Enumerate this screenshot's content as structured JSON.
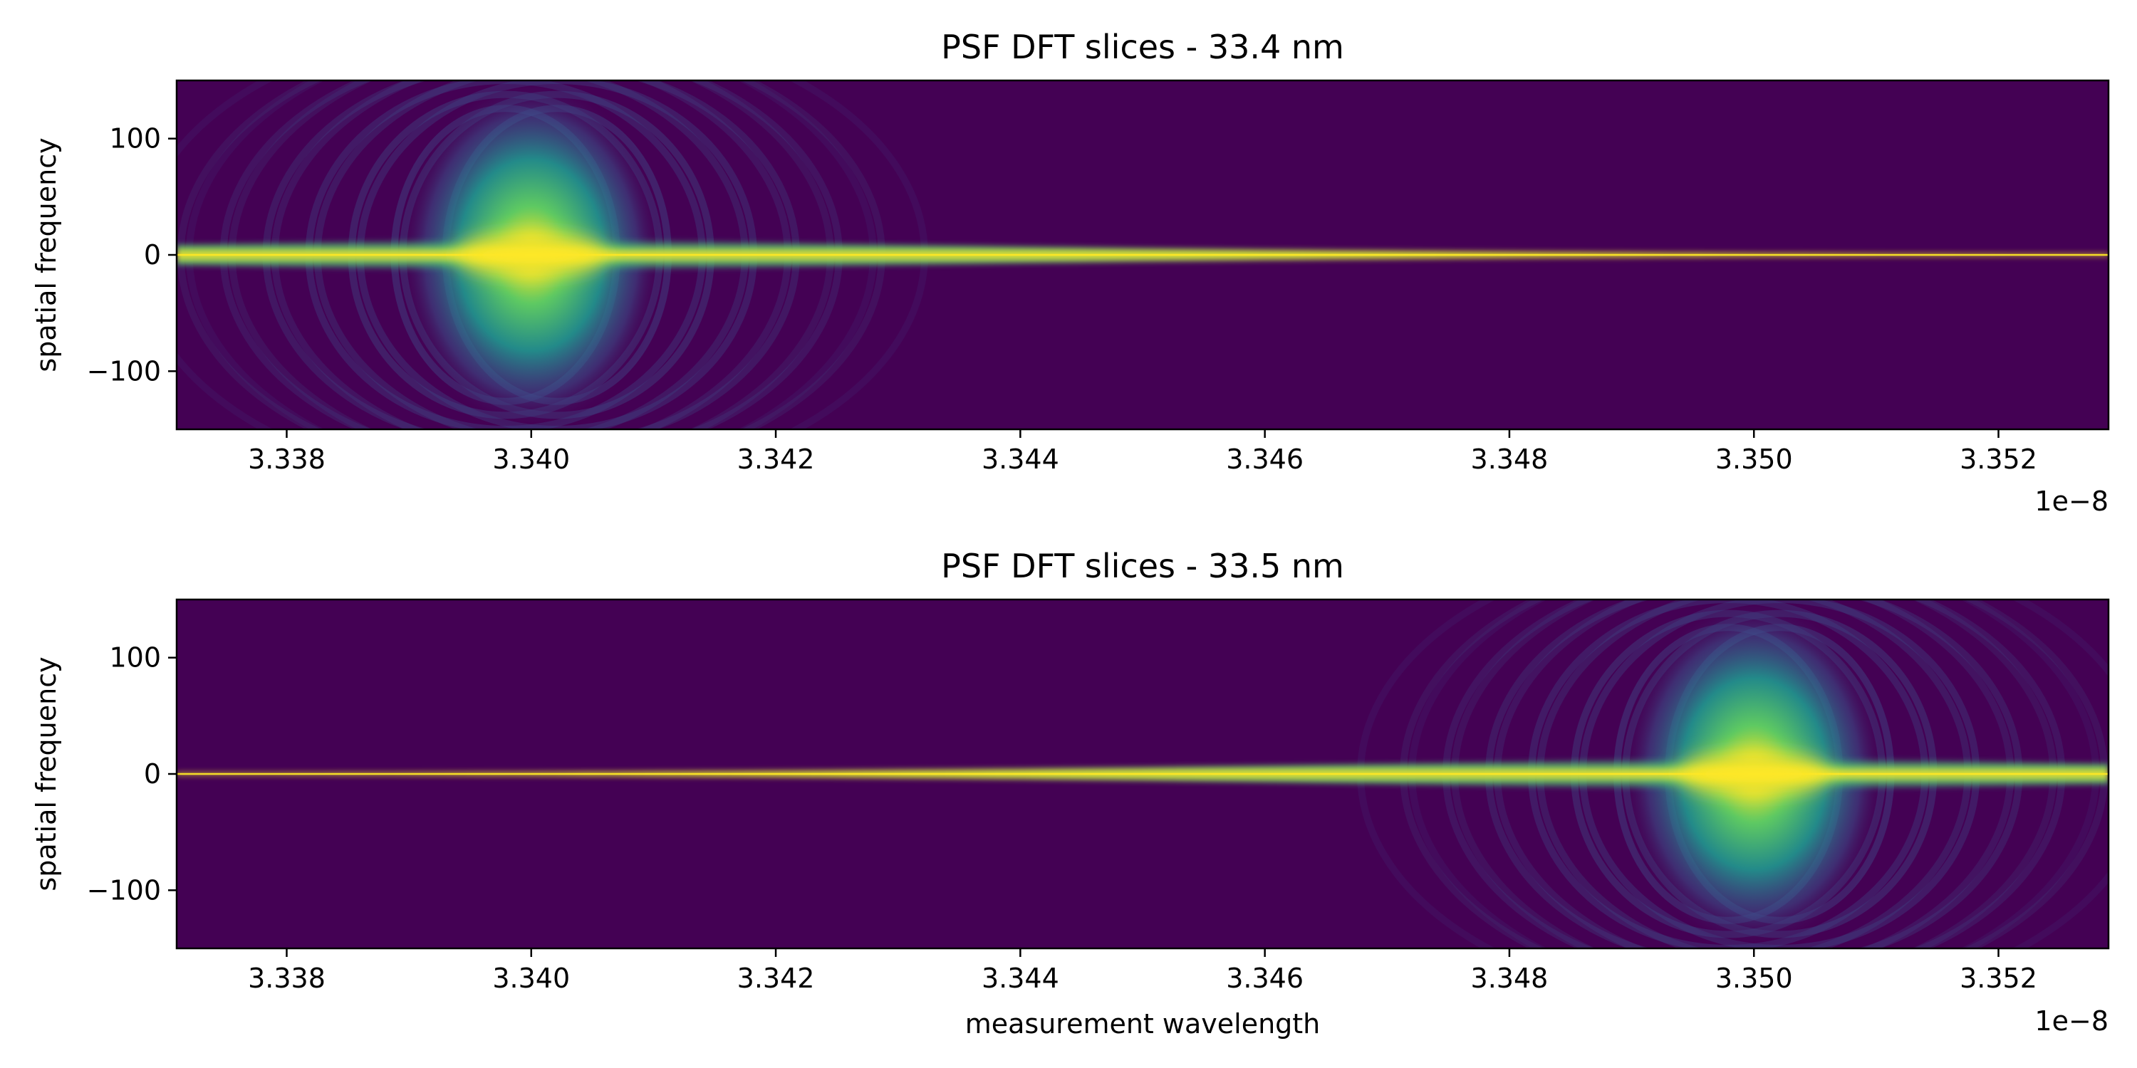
{
  "figure": {
    "background": "#ffffff"
  },
  "chart_data": [
    {
      "type": "heatmap",
      "title": "PSF DFT slices - 33.4 nm",
      "xlabel": "",
      "ylabel": "spatial frequency",
      "x_offset_text": "1e−8",
      "xlim": [
        3.3371,
        3.3529
      ],
      "ylim": [
        -150,
        150
      ],
      "x_ticks": [
        3.338,
        3.34,
        3.342,
        3.344,
        3.346,
        3.348,
        3.35,
        3.352
      ],
      "x_tick_labels": [
        "3.338",
        "3.340",
        "3.342",
        "3.344",
        "3.346",
        "3.348",
        "3.350",
        "3.352"
      ],
      "y_ticks": [
        100,
        0,
        -100
      ],
      "y_tick_labels": [
        "100",
        "0",
        "−100"
      ],
      "peak_wavelength": 3.34,
      "peak_width_half": 0.0007,
      "colormap": "viridis",
      "colormap_stops": [
        "#440154",
        "#3b528b",
        "#21918c",
        "#5ec962",
        "#fde725"
      ]
    },
    {
      "type": "heatmap",
      "title": "PSF DFT slices - 33.5 nm",
      "xlabel": "measurement wavelength",
      "ylabel": "spatial frequency",
      "x_offset_text": "1e−8",
      "xlim": [
        3.3371,
        3.3529
      ],
      "ylim": [
        -150,
        150
      ],
      "x_ticks": [
        3.338,
        3.34,
        3.342,
        3.344,
        3.346,
        3.348,
        3.35,
        3.352
      ],
      "x_tick_labels": [
        "3.338",
        "3.340",
        "3.342",
        "3.344",
        "3.346",
        "3.348",
        "3.350",
        "3.352"
      ],
      "y_ticks": [
        100,
        0,
        -100
      ],
      "y_tick_labels": [
        "100",
        "0",
        "−100"
      ],
      "peak_wavelength": 3.35,
      "peak_width_half": 0.0007,
      "colormap": "viridis",
      "colormap_stops": [
        "#440154",
        "#3b528b",
        "#21918c",
        "#5ec962",
        "#fde725"
      ]
    }
  ]
}
